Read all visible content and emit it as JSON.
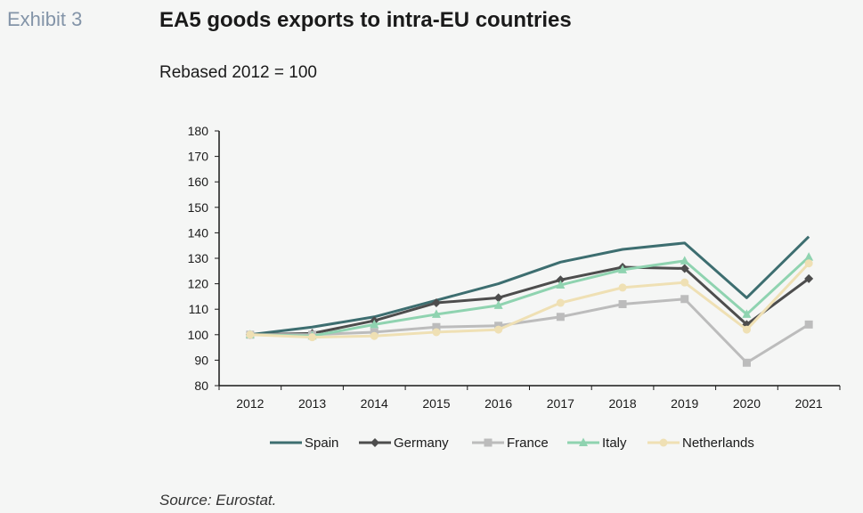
{
  "header": {
    "exhibit": "Exhibit 3",
    "title": "EA5 goods exports to intra-EU countries",
    "subtitle": "Rebased 2012 = 100"
  },
  "footer": {
    "source": "Source: Eurostat."
  },
  "chart_data": {
    "type": "line",
    "title": "EA5 goods exports to intra-EU countries",
    "subtitle": "Rebased 2012 = 100",
    "xlabel": "",
    "ylabel": "",
    "categories": [
      "2012",
      "2013",
      "2014",
      "2015",
      "2016",
      "2017",
      "2018",
      "2019",
      "2020",
      "2021"
    ],
    "ylim": [
      80,
      180
    ],
    "yticks": [
      80,
      90,
      100,
      110,
      120,
      130,
      140,
      150,
      160,
      170,
      180
    ],
    "grid": false,
    "legend_position": "bottom",
    "series": [
      {
        "name": "Spain",
        "color": "#3d6e70",
        "marker": "none",
        "values": [
          100,
          103,
          107,
          113.5,
          120,
          128.5,
          133.5,
          136,
          114.5,
          138.5
        ]
      },
      {
        "name": "Germany",
        "color": "#4d4d4d",
        "marker": "diamond",
        "values": [
          100,
          100.5,
          105.5,
          112.5,
          114.5,
          121.5,
          126.5,
          126,
          104,
          122
        ]
      },
      {
        "name": "France",
        "color": "#bcbcbc",
        "marker": "square",
        "values": [
          100,
          100,
          101,
          103,
          103.5,
          107,
          112,
          114,
          89,
          104
        ]
      },
      {
        "name": "Italy",
        "color": "#8fd3b0",
        "marker": "triangle",
        "values": [
          100,
          99.5,
          104,
          108,
          111.5,
          119.5,
          125.5,
          129,
          108,
          130.5
        ]
      },
      {
        "name": "Netherlands",
        "color": "#efe0b4",
        "marker": "circle",
        "values": [
          100,
          99,
          99.5,
          101,
          102,
          112.5,
          118.5,
          120.5,
          102,
          128
        ]
      }
    ]
  }
}
